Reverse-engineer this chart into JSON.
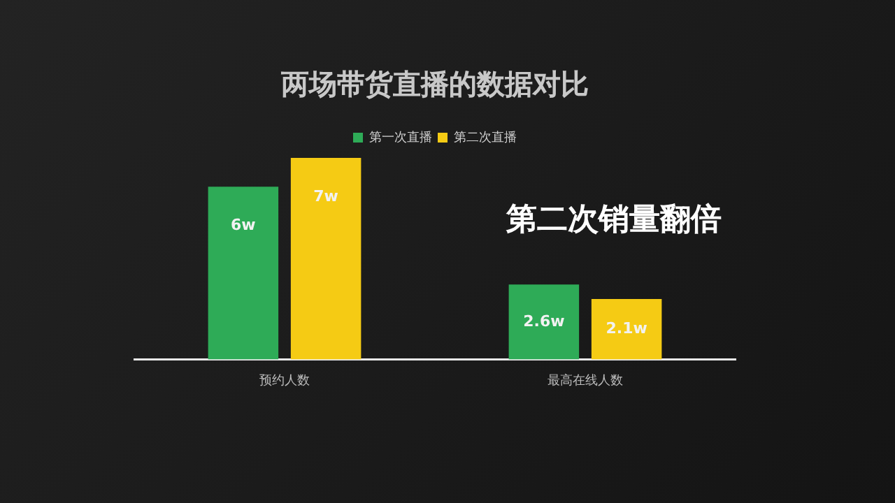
{
  "chart_data": {
    "type": "bar",
    "title": "两场带货直播的数据对比",
    "categories": [
      "预约人数",
      "最高在线人数"
    ],
    "series": [
      {
        "name": "第一次直播",
        "color": "#2eab57",
        "values": [
          6,
          2.6
        ],
        "value_labels": [
          "6w",
          "2.6w"
        ]
      },
      {
        "name": "第二次直播",
        "color": "#f5cb14",
        "values": [
          7,
          2.1
        ],
        "value_labels": [
          "7w",
          "2.1w"
        ]
      }
    ],
    "tick_labels": "x",
    "grid": false,
    "legend": "top",
    "annotations": [
      "第二次销量翻倍"
    ]
  }
}
